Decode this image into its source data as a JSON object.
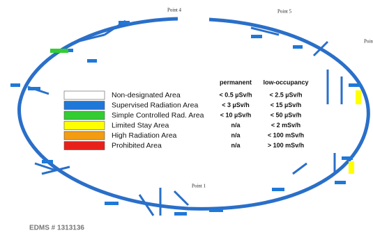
{
  "point_labels": [
    "Point 4",
    "Point 5",
    "Point 1",
    "Poin"
  ],
  "legend": {
    "headers": [
      "permanent",
      "low-occupancy"
    ],
    "rows": [
      {
        "name": "Non-designated Area",
        "color": "#ffffff",
        "permanent": "< 0.5 µSv/h",
        "low_occupancy": "< 2.5 µSv/h"
      },
      {
        "name": "Supervised Radiation Area",
        "color": "#1f78d8",
        "permanent": "< 3 µSv/h",
        "low_occupancy": "< 15 µSv/h"
      },
      {
        "name": "Simple Controlled Rad. Area",
        "color": "#33cc33",
        "permanent": "< 10 µSv/h",
        "low_occupancy": "< 50 µSv/h"
      },
      {
        "name": "Limited Stay Area",
        "color": "#ffff00",
        "permanent": "n/a",
        "low_occupancy": "< 2 mSv/h"
      },
      {
        "name": "High Radiation Area",
        "color": "#f39c12",
        "permanent": "n/a",
        "low_occupancy": "< 100 mSv/h"
      },
      {
        "name": "Prohibited Area",
        "color": "#e8201a",
        "permanent": "n/a",
        "low_occupancy": "> 100 mSv/h"
      }
    ]
  },
  "footer": "EDMS # 1313136"
}
